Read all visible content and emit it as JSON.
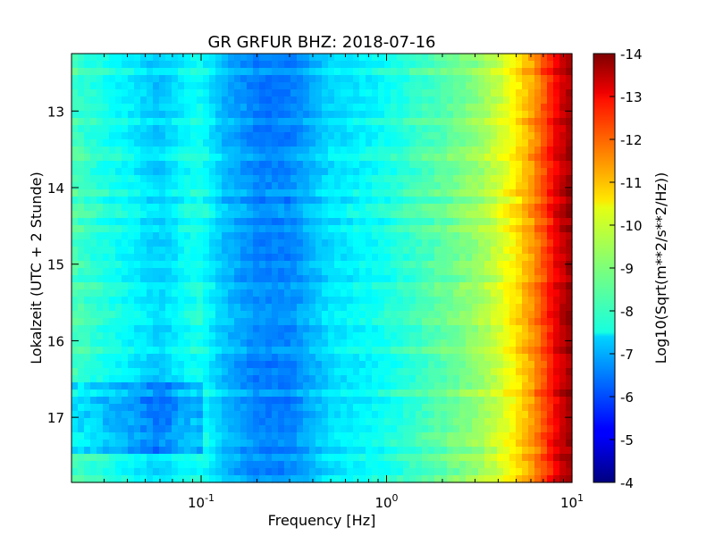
{
  "chart_data": {
    "type": "heatmap",
    "title": "GR GRFUR BHZ: 2018-07-16",
    "xlabel": "Frequency [Hz]",
    "ylabel": "Lokalzeit (UTC + 2 Stunde)",
    "xscale": "log",
    "xlim": [
      0.02,
      10
    ],
    "ylim": [
      12.25,
      17.85
    ],
    "x_ticks": [
      {
        "value": 0.1,
        "base": "10",
        "exp": "-1"
      },
      {
        "value": 1,
        "base": "10",
        "exp": "0"
      },
      {
        "value": 10,
        "base": "10",
        "exp": "1"
      }
    ],
    "y_ticks": [
      {
        "value": 13,
        "label": "13"
      },
      {
        "value": 14,
        "label": "14"
      },
      {
        "value": 15,
        "label": "15"
      },
      {
        "value": 16,
        "label": "16"
      },
      {
        "value": 17,
        "label": "17"
      }
    ],
    "y_inverted": true,
    "colorbar": {
      "label": "Log10(Sqrt(m**2/s**2/Hz))",
      "range": [
        -14,
        -4
      ],
      "colormap": "jet",
      "ticks": [
        "-4",
        "-5",
        "-6",
        "-7",
        "-8",
        "-9",
        "-10",
        "-11",
        "-12",
        "-13",
        "-14"
      ]
    },
    "frequency_profile": {
      "frequency_hz": [
        0.02,
        0.04,
        0.06,
        0.08,
        0.1,
        0.13,
        0.2,
        0.3,
        0.5,
        0.8,
        1.0,
        2.0,
        3.0,
        4.0,
        5.0,
        6.0,
        7.0,
        8.0,
        9.0,
        10.0
      ],
      "value_log10": [
        -8.5,
        -7.8,
        -7.3,
        -7.8,
        -8.0,
        -7.2,
        -6.6,
        -6.6,
        -7.5,
        -7.8,
        -8.0,
        -8.7,
        -9.2,
        -9.8,
        -10.5,
        -11.2,
        -12.0,
        -12.8,
        -13.4,
        -13.8
      ]
    },
    "time_variation": {
      "lowfreq_enhanced_hours": [
        16.5,
        17.5
      ],
      "lowfreq_enhancement": 1.0
    }
  }
}
